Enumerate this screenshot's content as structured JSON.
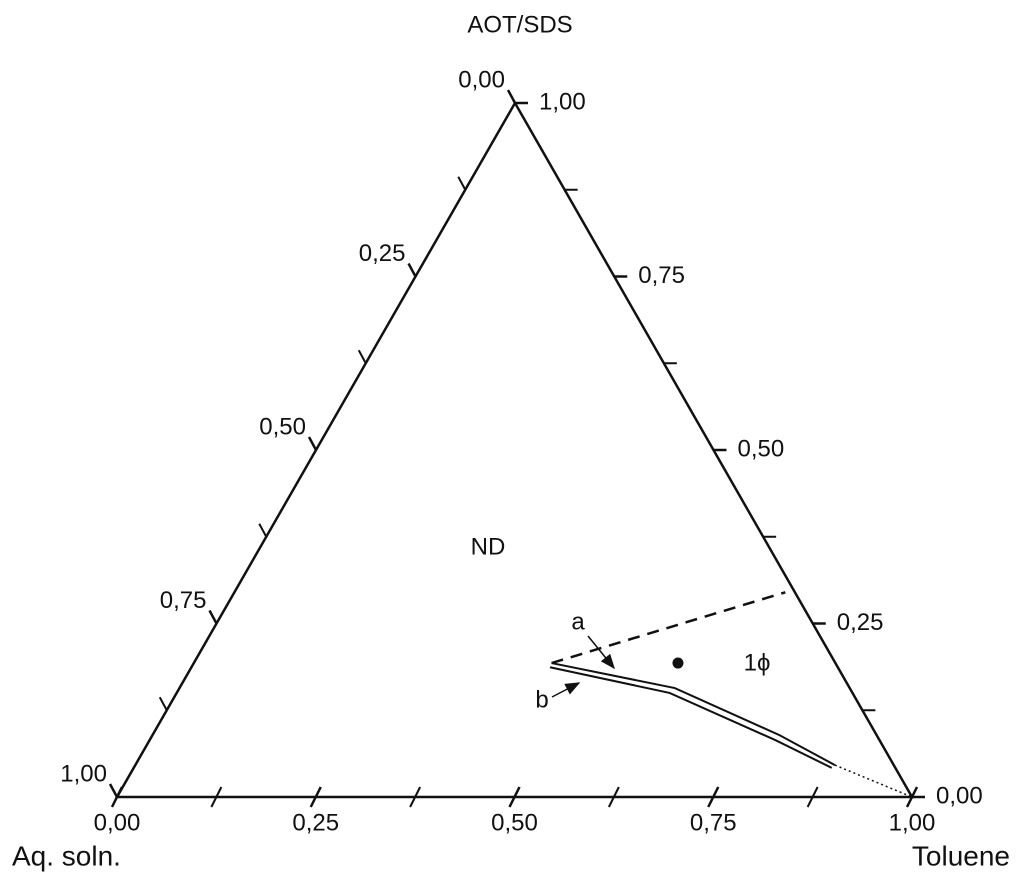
{
  "chart_data": {
    "type": "ternary",
    "vertices": {
      "top": "AOT/SDS",
      "left": "Aq. soln.",
      "right": "Toluene"
    },
    "bottom_ticks": [
      {
        "value": 0,
        "label": "0,00"
      },
      {
        "value": 0.25,
        "label": "0,25"
      },
      {
        "value": 0.5,
        "label": "0,50"
      },
      {
        "value": 0.75,
        "label": "0,75"
      },
      {
        "value": 1,
        "label": "1,00"
      }
    ],
    "left_ticks": [
      {
        "value": 0,
        "label": "0,00"
      },
      {
        "value": 0.25,
        "label": "0,25"
      },
      {
        "value": 0.5,
        "label": "0,50"
      },
      {
        "value": 0.75,
        "label": "0,75"
      },
      {
        "value": 1,
        "label": "1,00"
      }
    ],
    "right_ticks": [
      {
        "value": 0,
        "label": "0,00"
      },
      {
        "value": 0.25,
        "label": "0,25"
      },
      {
        "value": 0.5,
        "label": "0,50"
      },
      {
        "value": 0.75,
        "label": "0,75"
      },
      {
        "value": 1,
        "label": "1,00"
      }
    ],
    "minor_ticks": [
      0.125,
      0.375,
      0.625,
      0.875
    ],
    "series": [
      {
        "name": "a",
        "x": [
          0.45,
          0.623,
          0.789,
          0.88
        ],
        "values": [
          0.193,
          0.157,
          0.089,
          0.046
        ]
      },
      {
        "name": "b",
        "x": [
          0.451,
          0.62,
          0.787,
          0.878
        ],
        "values": [
          0.187,
          0.15,
          0.082,
          0.042
        ]
      }
    ],
    "dashed_line": {
      "x": [
        0.45,
        0.693
      ],
      "values": [
        0.193,
        0.295
      ]
    },
    "dotted_line": {
      "x": [
        0.88,
        1
      ],
      "values": [
        0.046,
        0
      ]
    },
    "point": {
      "x": 0.609,
      "values": 0.193
    },
    "annotations": [
      "ND",
      "1ϕ"
    ]
  }
}
